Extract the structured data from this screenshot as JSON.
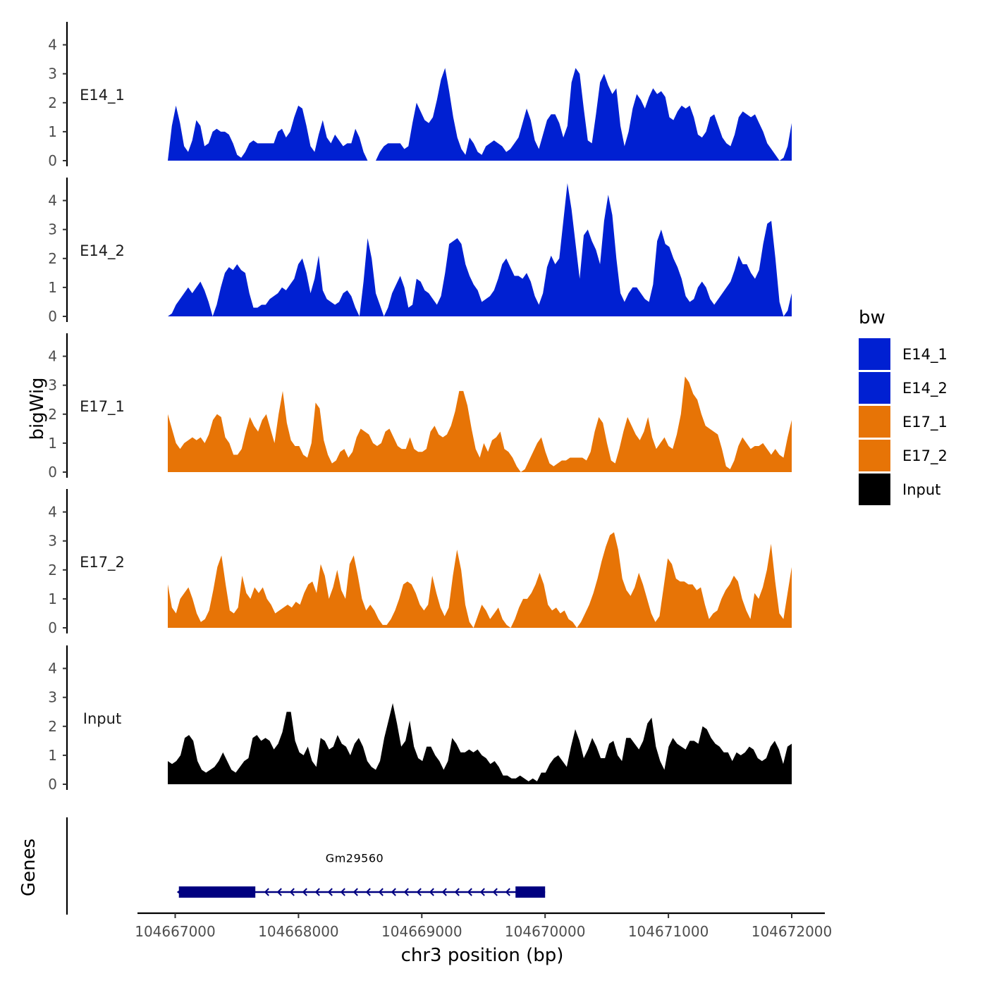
{
  "chart_data": {
    "type": "area",
    "xlabel": "chr3 position (bp)",
    "ylabel": "bigWig",
    "genes_ylabel": "Genes",
    "legend_title": "bw",
    "x_range": [
      104666940,
      104672000
    ],
    "xlim": [
      104666650,
      104672270
    ],
    "x_ticks": [
      104667000,
      104668000,
      104669000,
      104670000,
      104671000,
      104672000
    ],
    "x_tick_labels": [
      "104667000",
      "104668000",
      "104669000",
      "104670000",
      "104671000",
      "104672000"
    ],
    "ylim": [
      0,
      4.8
    ],
    "y_ticks": [
      0,
      1,
      2,
      3,
      4
    ],
    "y_tick_labels": [
      "0",
      "1",
      "2",
      "3",
      "4"
    ],
    "series": [
      {
        "name": "E14_1",
        "color": "#0020D2",
        "values": [
          0.0,
          1.2,
          1.9,
          1.3,
          0.5,
          0.3,
          0.7,
          1.4,
          1.2,
          0.5,
          0.6,
          1.0,
          1.1,
          1.0,
          1.0,
          0.9,
          0.6,
          0.2,
          0.1,
          0.3,
          0.6,
          0.7,
          0.6,
          0.6,
          0.6,
          0.6,
          0.6,
          1.0,
          1.1,
          0.8,
          1.0,
          1.5,
          1.9,
          1.8,
          1.2,
          0.5,
          0.3,
          0.9,
          1.4,
          0.8,
          0.6,
          0.9,
          0.7,
          0.5,
          0.6,
          0.6,
          1.1,
          0.8,
          0.3,
          0.0,
          0.0,
          0.0,
          0.3,
          0.5,
          0.6,
          0.6,
          0.6,
          0.6,
          0.4,
          0.5,
          1.3,
          2.0,
          1.7,
          1.4,
          1.3,
          1.5,
          2.1,
          2.8,
          3.2,
          2.4,
          1.5,
          0.8,
          0.4,
          0.2,
          0.8,
          0.6,
          0.3,
          0.2,
          0.5,
          0.6,
          0.7,
          0.6,
          0.5,
          0.3,
          0.4,
          0.6,
          0.8,
          1.3,
          1.8,
          1.4,
          0.7,
          0.4,
          0.9,
          1.4,
          1.6,
          1.6,
          1.3,
          0.8,
          1.2,
          2.7,
          3.2,
          3.0,
          1.8,
          0.7,
          0.6,
          1.6,
          2.7,
          3.0,
          2.6,
          2.3,
          2.5,
          1.2,
          0.5,
          1.0,
          1.8,
          2.3,
          2.1,
          1.8,
          2.2,
          2.5,
          2.3,
          2.4,
          2.2,
          1.5,
          1.4,
          1.7,
          1.9,
          1.8,
          1.9,
          1.5,
          0.9,
          0.8,
          1.0,
          1.5,
          1.6,
          1.2,
          0.8,
          0.6,
          0.5,
          0.9,
          1.5,
          1.7,
          1.6,
          1.5,
          1.6,
          1.3,
          1.0,
          0.6,
          0.4,
          0.2,
          0.0,
          0.1,
          0.5,
          1.3
        ],
        "label": "E14_1"
      },
      {
        "name": "E14_2",
        "color": "#0020D2",
        "values": [
          0.0,
          0.1,
          0.4,
          0.6,
          0.8,
          1.0,
          0.8,
          1.0,
          1.2,
          0.9,
          0.5,
          0.0,
          0.4,
          1.0,
          1.5,
          1.7,
          1.6,
          1.8,
          1.6,
          1.5,
          0.8,
          0.3,
          0.3,
          0.4,
          0.4,
          0.6,
          0.7,
          0.8,
          1.0,
          0.9,
          1.1,
          1.3,
          1.8,
          2.0,
          1.5,
          0.8,
          1.3,
          2.1,
          0.9,
          0.6,
          0.5,
          0.4,
          0.5,
          0.8,
          0.9,
          0.7,
          0.3,
          0.0,
          1.2,
          2.7,
          2.0,
          0.8,
          0.4,
          0.0,
          0.3,
          0.8,
          1.1,
          1.4,
          1.0,
          0.3,
          0.4,
          1.3,
          1.2,
          0.9,
          0.8,
          0.6,
          0.4,
          0.7,
          1.5,
          2.5,
          2.6,
          2.7,
          2.5,
          1.8,
          1.4,
          1.1,
          0.9,
          0.5,
          0.6,
          0.7,
          0.9,
          1.3,
          1.8,
          2.0,
          1.7,
          1.4,
          1.4,
          1.3,
          1.5,
          1.2,
          0.7,
          0.4,
          0.8,
          1.7,
          2.1,
          1.8,
          2.0,
          3.3,
          4.6,
          3.7,
          2.5,
          1.3,
          2.8,
          3.0,
          2.6,
          2.3,
          1.8,
          3.3,
          4.2,
          3.5,
          2.0,
          0.8,
          0.5,
          0.8,
          1.0,
          1.0,
          0.8,
          0.6,
          0.5,
          1.1,
          2.6,
          3.0,
          2.5,
          2.4,
          2.0,
          1.7,
          1.3,
          0.7,
          0.5,
          0.6,
          1.0,
          1.2,
          1.0,
          0.6,
          0.4,
          0.6,
          0.8,
          1.0,
          1.2,
          1.6,
          2.1,
          1.8,
          1.8,
          1.5,
          1.3,
          1.6,
          2.5,
          3.2,
          3.3,
          2.0,
          0.5,
          0.0,
          0.2,
          0.8
        ],
        "label": "E14_2"
      },
      {
        "name": "E17_1",
        "color": "#E77406",
        "values": [
          2.0,
          1.5,
          1.0,
          0.8,
          1.0,
          1.1,
          1.2,
          1.1,
          1.2,
          1.0,
          1.3,
          1.8,
          2.0,
          1.9,
          1.2,
          1.0,
          0.6,
          0.6,
          0.8,
          1.4,
          1.9,
          1.6,
          1.4,
          1.8,
          2.0,
          1.5,
          1.0,
          2.0,
          2.8,
          1.7,
          1.1,
          0.9,
          0.9,
          0.6,
          0.5,
          1.0,
          2.4,
          2.2,
          1.1,
          0.6,
          0.3,
          0.4,
          0.7,
          0.8,
          0.5,
          0.7,
          1.2,
          1.5,
          1.4,
          1.3,
          1.0,
          0.9,
          1.0,
          1.4,
          1.5,
          1.2,
          0.9,
          0.8,
          0.8,
          1.2,
          0.8,
          0.7,
          0.7,
          0.8,
          1.4,
          1.6,
          1.3,
          1.2,
          1.3,
          1.6,
          2.1,
          2.8,
          2.8,
          2.3,
          1.5,
          0.8,
          0.5,
          1.0,
          0.7,
          1.1,
          1.2,
          1.4,
          0.8,
          0.7,
          0.5,
          0.2,
          0.0,
          0.1,
          0.4,
          0.7,
          1.0,
          1.2,
          0.7,
          0.3,
          0.2,
          0.3,
          0.4,
          0.4,
          0.5,
          0.5,
          0.5,
          0.5,
          0.4,
          0.7,
          1.4,
          1.9,
          1.7,
          1.0,
          0.4,
          0.3,
          0.8,
          1.4,
          1.9,
          1.6,
          1.3,
          1.1,
          1.4,
          1.9,
          1.2,
          0.8,
          1.0,
          1.2,
          0.9,
          0.8,
          1.3,
          2.0,
          3.3,
          3.1,
          2.7,
          2.5,
          2.0,
          1.6,
          1.5,
          1.4,
          1.3,
          0.8,
          0.2,
          0.1,
          0.4,
          0.9,
          1.2,
          1.0,
          0.8,
          0.9,
          0.9,
          1.0,
          0.8,
          0.6,
          0.8,
          0.6,
          0.5,
          1.2,
          1.8
        ],
        "label": "E17_1"
      },
      {
        "name": "E17_2",
        "color": "#E77406",
        "values": [
          1.5,
          0.7,
          0.5,
          1.0,
          1.2,
          1.4,
          1.0,
          0.5,
          0.2,
          0.3,
          0.6,
          1.3,
          2.1,
          2.5,
          1.5,
          0.6,
          0.5,
          0.7,
          1.8,
          1.2,
          1.0,
          1.4,
          1.2,
          1.4,
          1.0,
          0.8,
          0.5,
          0.6,
          0.7,
          0.8,
          0.7,
          0.9,
          0.8,
          1.2,
          1.5,
          1.6,
          1.2,
          2.2,
          1.8,
          1.0,
          1.4,
          2.0,
          1.3,
          1.0,
          2.2,
          2.5,
          1.8,
          1.0,
          0.6,
          0.8,
          0.6,
          0.3,
          0.1,
          0.1,
          0.3,
          0.6,
          1.0,
          1.5,
          1.6,
          1.5,
          1.2,
          0.8,
          0.6,
          0.8,
          1.8,
          1.2,
          0.7,
          0.4,
          0.7,
          1.8,
          2.7,
          2.0,
          0.8,
          0.2,
          0.0,
          0.4,
          0.8,
          0.6,
          0.3,
          0.5,
          0.7,
          0.3,
          0.1,
          0.0,
          0.3,
          0.7,
          1.0,
          1.0,
          1.2,
          1.5,
          1.9,
          1.5,
          0.8,
          0.6,
          0.7,
          0.5,
          0.6,
          0.3,
          0.2,
          0.0,
          0.2,
          0.5,
          0.8,
          1.2,
          1.7,
          2.3,
          2.8,
          3.2,
          3.3,
          2.7,
          1.7,
          1.3,
          1.1,
          1.4,
          1.9,
          1.5,
          1.0,
          0.5,
          0.2,
          0.4,
          1.4,
          2.4,
          2.2,
          1.7,
          1.6,
          1.6,
          1.5,
          1.5,
          1.3,
          1.4,
          0.8,
          0.3,
          0.5,
          0.6,
          1.0,
          1.3,
          1.5,
          1.8,
          1.6,
          1.0,
          0.6,
          0.3,
          1.2,
          1.0,
          1.4,
          2.0,
          2.9,
          1.6,
          0.5,
          0.3,
          1.2,
          2.1
        ],
        "label": "E17_2"
      },
      {
        "name": "Input",
        "color": "#000000",
        "values": [
          0.8,
          0.7,
          0.8,
          1.0,
          1.6,
          1.7,
          1.5,
          0.8,
          0.5,
          0.4,
          0.5,
          0.6,
          0.8,
          1.1,
          0.8,
          0.5,
          0.4,
          0.6,
          0.8,
          0.9,
          1.6,
          1.7,
          1.5,
          1.6,
          1.5,
          1.2,
          1.4,
          1.8,
          2.5,
          2.5,
          1.5,
          1.1,
          1.0,
          1.3,
          0.8,
          0.6,
          1.6,
          1.5,
          1.2,
          1.3,
          1.7,
          1.4,
          1.3,
          1.0,
          1.4,
          1.6,
          1.3,
          0.8,
          0.6,
          0.5,
          0.8,
          1.6,
          2.2,
          2.8,
          2.1,
          1.3,
          1.5,
          2.2,
          1.3,
          0.9,
          0.8,
          1.3,
          1.3,
          1.0,
          0.8,
          0.5,
          0.8,
          1.6,
          1.4,
          1.1,
          1.1,
          1.2,
          1.1,
          1.2,
          1.0,
          0.9,
          0.7,
          0.8,
          0.6,
          0.3,
          0.3,
          0.2,
          0.2,
          0.3,
          0.2,
          0.1,
          0.2,
          0.1,
          0.4,
          0.4,
          0.7,
          0.9,
          1.0,
          0.8,
          0.6,
          1.3,
          1.9,
          1.5,
          0.9,
          1.2,
          1.6,
          1.3,
          0.9,
          0.9,
          1.4,
          1.5,
          1.0,
          0.8,
          1.6,
          1.6,
          1.4,
          1.2,
          1.5,
          2.1,
          2.3,
          1.3,
          0.8,
          0.5,
          1.3,
          1.6,
          1.4,
          1.3,
          1.2,
          1.5,
          1.5,
          1.4,
          2.0,
          1.9,
          1.6,
          1.4,
          1.3,
          1.1,
          1.1,
          0.8,
          1.1,
          1.0,
          1.1,
          1.3,
          1.2,
          0.9,
          0.8,
          0.9,
          1.3,
          1.5,
          1.2,
          0.7,
          1.3,
          1.4
        ],
        "label": "Input"
      }
    ],
    "genes": [
      {
        "name": "Gm29560",
        "strand": "-",
        "start": 104667030,
        "end": 104670000,
        "exons": [
          [
            104667030,
            104667650
          ],
          [
            104669760,
            104670000
          ]
        ],
        "color": "#000080"
      }
    ],
    "legend": [
      {
        "label": "E14_1",
        "color": "#0020D2"
      },
      {
        "label": "E14_2",
        "color": "#0020D2"
      },
      {
        "label": "E17_1",
        "color": "#E77406"
      },
      {
        "label": "E17_2",
        "color": "#E77406"
      },
      {
        "label": "Input",
        "color": "#000000"
      }
    ]
  }
}
